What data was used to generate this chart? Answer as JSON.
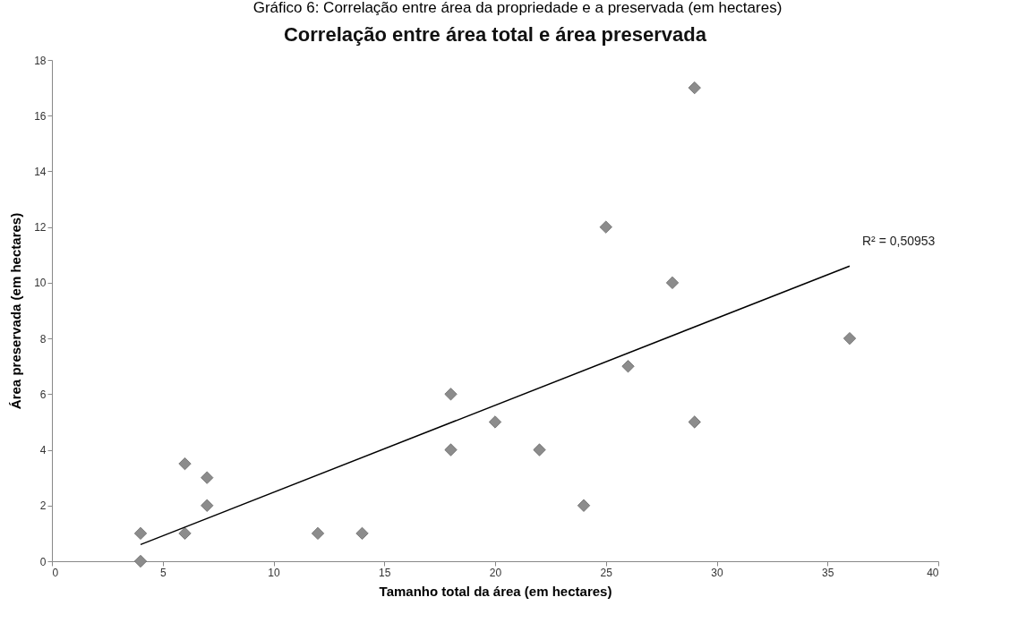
{
  "chart_data": {
    "type": "scatter",
    "title": "Correlação entre área total e área preservada",
    "xlabel": "Tamanho total da área (em hectares)",
    "ylabel": "Área preservada (em hectares)",
    "annotations": [
      "Gráfico 6: Correlação entre área da propriedade e a preservada (em hectares)",
      {
        "text": "R² = 0,50953",
        "x": 36,
        "y": 10.6
      }
    ],
    "series": [
      {
        "color": "#8c8c8c",
        "marker": "diamond",
        "x": [
          4,
          4,
          6,
          6,
          7,
          7,
          12,
          14,
          18,
          18,
          20,
          22,
          24,
          25,
          26,
          28,
          29,
          29,
          36
        ],
        "values": [
          1,
          0,
          3.5,
          1,
          3,
          2,
          1,
          1,
          6,
          4,
          5,
          4,
          2,
          12,
          7,
          10,
          17,
          5,
          8
        ]
      },
      {
        "type": "line",
        "color": "#000000",
        "x": [
          4,
          36
        ],
        "values": [
          0.6,
          10.6
        ]
      }
    ],
    "xlim": [
      0,
      40
    ],
    "xticks": [
      0,
      5,
      10,
      15,
      20,
      25,
      30,
      35,
      40
    ],
    "ylim": [
      0,
      18
    ],
    "yticks": [
      0,
      2,
      4,
      6,
      8,
      10,
      12,
      14,
      16,
      18
    ],
    "grid": false
  }
}
